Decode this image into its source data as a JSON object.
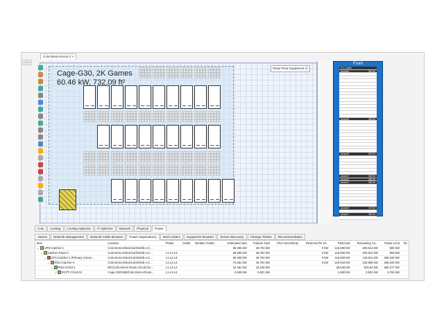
{
  "editor": {
    "tab_title": "Colo-Demo-Room-1",
    "clear_label": "Clear",
    "cage_title": "Cage-G30, 2K Games",
    "cage_summary": "60.46 kW, 732.09 ft²",
    "show_floor_equipment": "Show Floor Equipment"
  },
  "rack_panel": {
    "header": "Front",
    "rack_name": "CG44-A-R-1",
    "top_device": "R-1-Cable",
    "slots": [
      {
        "label": "server8",
        "power": "350 W"
      },
      {
        "label": "server8",
        "power": "350 W"
      },
      {
        "label": "server8",
        "power": "350 W"
      },
      {
        "label": "server2",
        "power": "350 W"
      },
      {
        "label": "server2",
        "power": "350 W"
      },
      {
        "label": "server2",
        "power": "350 W"
      },
      {
        "label": "server8",
        "power": "375 W"
      },
      {
        "label": "server7",
        "power": "350 W"
      }
    ]
  },
  "view_tabs": [
    "Colo",
    "Cooling",
    "Cooling Optimize",
    "IT Optimize",
    "Network",
    "Physical",
    "Power"
  ],
  "bottom_tabs": [
    "Alarms",
    "Network Management",
    "Network Cable Browser",
    "Power Dependency",
    "Work Orders",
    "Equipment Browser",
    "Server Discovery",
    "Change Tickets",
    "Recommendation"
  ],
  "table": {
    "columns": [
      "Item",
      "Location",
      "Phase",
      "Outlet",
      "Breaker model...",
      "Estimated load",
      "Failover load",
      "PSU Uncertainty",
      "Reserved for Di...",
      "Total load",
      "Remaining Ca...",
      "Power Limit",
      "Re"
    ],
    "rows": [
      {
        "item": "UPS-Catcher-1",
        "color": "#e0b040",
        "location": "Colo-Demo-Electrical-Distrib-u-C...",
        "phase": "",
        "est": "69.305 kW",
        "fail": "48.702 kW",
        "res": "0 kW",
        "total": "119.000 kW",
        "rem": "200.812 kW",
        "limit": "500 kW"
      },
      {
        "item": "Catcher-Panel-1",
        "color": "#8bc34a",
        "location": "Colo-Demo-Electrical-Distrib-u-C...",
        "phase": "L1-L2-L3",
        "est": "69.305 kW",
        "fail": "48.702 kW",
        "res": "0 kW",
        "total": "119.000 kW",
        "rem": "200.812 kW",
        "limit": "500 kW"
      },
      {
        "item": "STS-Catcher-1 (Primary Conne...",
        "color": "#d9534f",
        "location": "Colo-Demo-Electrical-Distrib-u-C...",
        "phase": "L1-L2-L3",
        "est": "69.305 kW",
        "fail": "48.702 kW",
        "res": "0 kW",
        "total": "119.000 kW",
        "rem": "146.811 kW",
        "limit": "266.043 kW"
      },
      {
        "item": "PDU-Catcher-A",
        "color": "#8bc34a",
        "location": "Colo-Demo-Electrical-Distrib-u-C...",
        "phase": "L1-L2-L3",
        "est": "70.261 kW",
        "fail": "48.702 kW",
        "res": "0 kW",
        "total": "120.044 kW",
        "rem": "145.999 kW",
        "limit": "266.043 kW"
      },
      {
        "item": "PDU-CG44-1",
        "color": "#8bc34a",
        "location": "B21/Colo-Demo Room-1/Colo De...",
        "phase": "L1-L2-L3",
        "est": "24.461 kW",
        "fail": "15.105 kW",
        "res": "",
        "total": "39.646 kW",
        "rem": "525.94 kW",
        "limit": "566.277 kW"
      },
      {
        "item": "RCPT-CG44-01",
        "color": "#8bc34a",
        "location": "Cage-G30/H50/Colo-Demo-Room...",
        "phase": "L1-L2-L3",
        "est": "0.938 kW",
        "fail": "0.821 kW",
        "res": "",
        "total": "1.860 kW",
        "rem": "3.901 kW",
        "limit": "5.764 kW"
      }
    ]
  }
}
